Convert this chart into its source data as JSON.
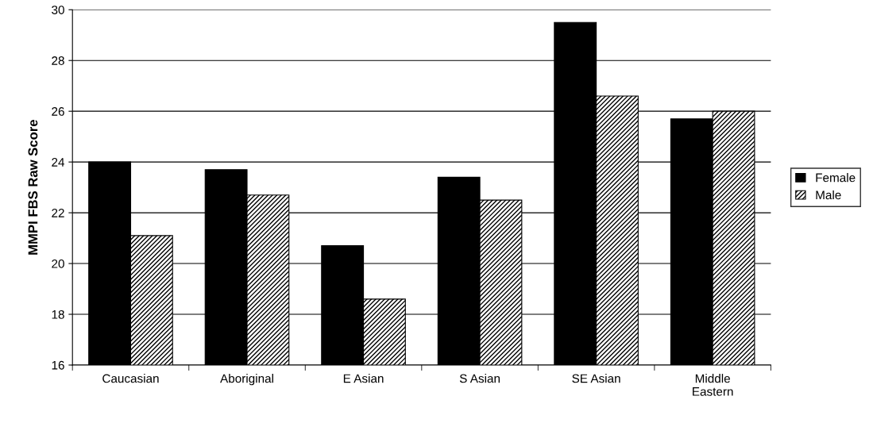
{
  "chart_data": {
    "type": "bar",
    "ylabel": "MMPI FBS Raw Score",
    "categories": [
      "Caucasian",
      "Aboriginal",
      "E Asian",
      "S Asian",
      "SE Asian",
      "Middle\nEastern"
    ],
    "series": [
      {
        "name": "Female",
        "color": "#000000",
        "values": [
          24.0,
          23.7,
          20.7,
          23.4,
          29.5,
          25.7
        ]
      },
      {
        "name": "Male",
        "color": "#000000",
        "values": [
          21.1,
          22.7,
          18.6,
          22.5,
          26.6,
          26.0
        ]
      }
    ],
    "ylim": [
      16,
      30
    ],
    "yticks": [
      16,
      18,
      20,
      22,
      24,
      26,
      28,
      30
    ],
    "grid": "y",
    "legend": "right"
  }
}
